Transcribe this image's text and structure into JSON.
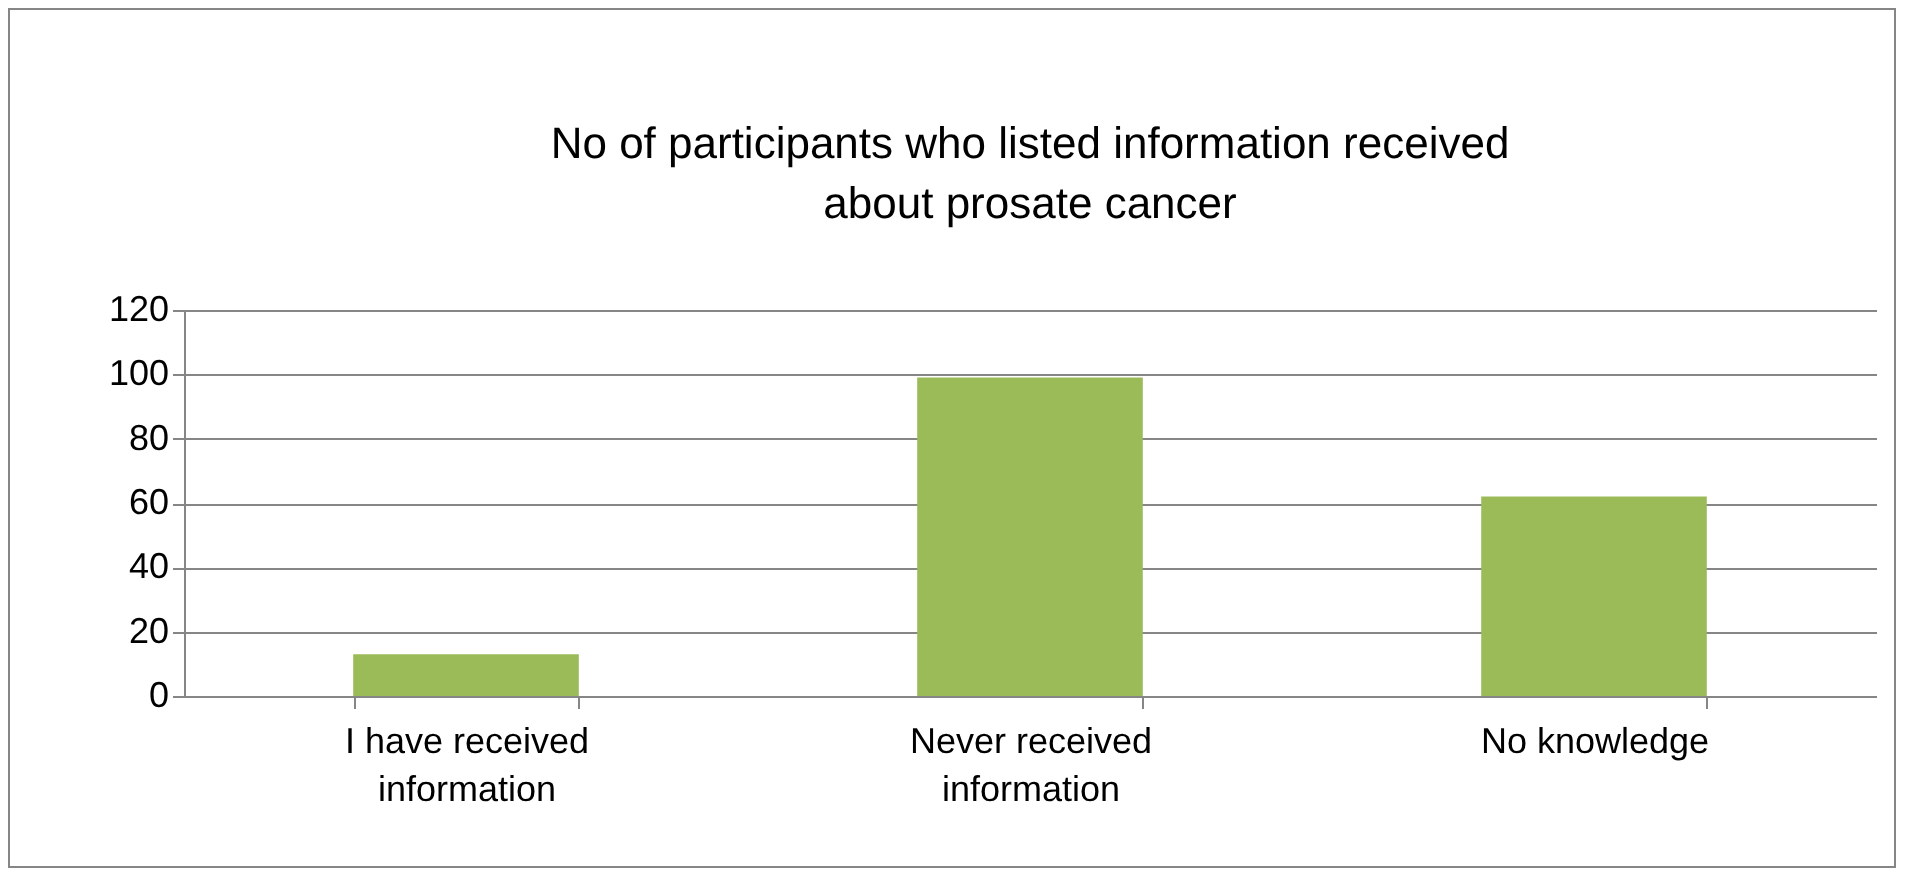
{
  "chart_data": {
    "type": "bar",
    "title": "No of participants who listed  information received about prosate cancer",
    "categories": [
      "I have received information",
      "Never received information",
      "No knowledge"
    ],
    "values": [
      13,
      99,
      62
    ],
    "color": "#9bbb59",
    "ylim": [
      0,
      120
    ],
    "yticks": [
      0,
      20,
      40,
      60,
      80,
      100,
      120
    ],
    "grid": "y"
  }
}
